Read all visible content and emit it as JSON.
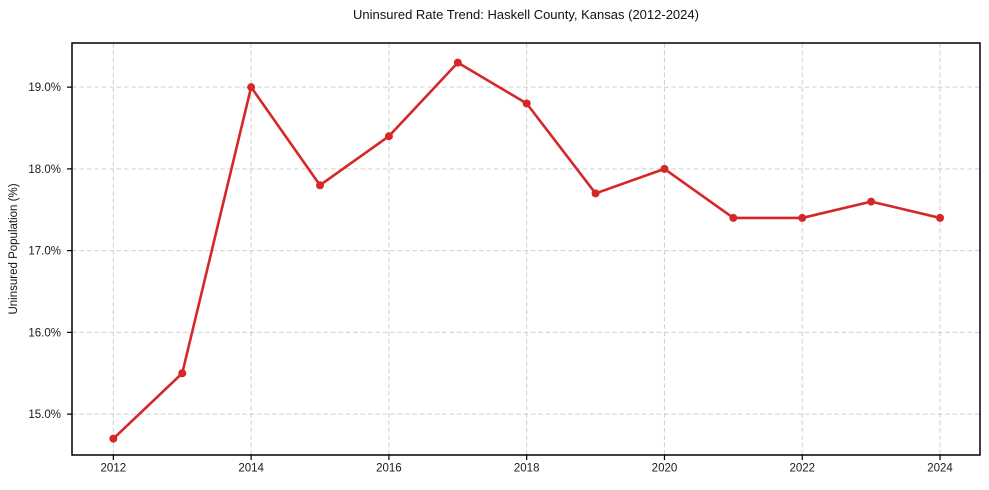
{
  "figure": {
    "background": "#ffffff"
  },
  "chart_data": {
    "type": "line",
    "title": "Uninsured Rate Trend: Haskell County, Kansas (2012-2024)",
    "xlabel": "",
    "ylabel": "Uninsured Population (%)",
    "x": [
      2012,
      2013,
      2014,
      2015,
      2016,
      2017,
      2018,
      2019,
      2020,
      2021,
      2022,
      2023,
      2024
    ],
    "values": [
      14.7,
      15.5,
      19.0,
      17.8,
      18.4,
      19.3,
      18.8,
      17.7,
      18.0,
      17.4,
      17.4,
      17.6,
      17.4
    ],
    "xlim": [
      2011.4,
      2024.58
    ],
    "ylim": [
      14.5,
      19.54
    ],
    "xticks": {
      "values": [
        2012,
        2014,
        2016,
        2018,
        2020,
        2022,
        2024
      ],
      "labels": [
        "2012",
        "2014",
        "2016",
        "2018",
        "2020",
        "2022",
        "2024"
      ]
    },
    "yticks": {
      "values": [
        15,
        16,
        17,
        18,
        19
      ],
      "labels": [
        "15.0%",
        "16.0%",
        "17.0%",
        "18.0%",
        "19.0%"
      ]
    },
    "grid": {
      "visible": true,
      "style": "dashed",
      "axes": "both"
    },
    "legend": {
      "visible": false
    },
    "style": {
      "line_color": "#d62728",
      "marker_color": "#d62728",
      "marker_size": 8,
      "line_width": 2.6,
      "grid_color": "#cfcfcf",
      "axis_color": "#000000",
      "text_color": "#1a1a1a",
      "tick_font_size": 11.5,
      "plot_background": "#ffffff"
    }
  }
}
